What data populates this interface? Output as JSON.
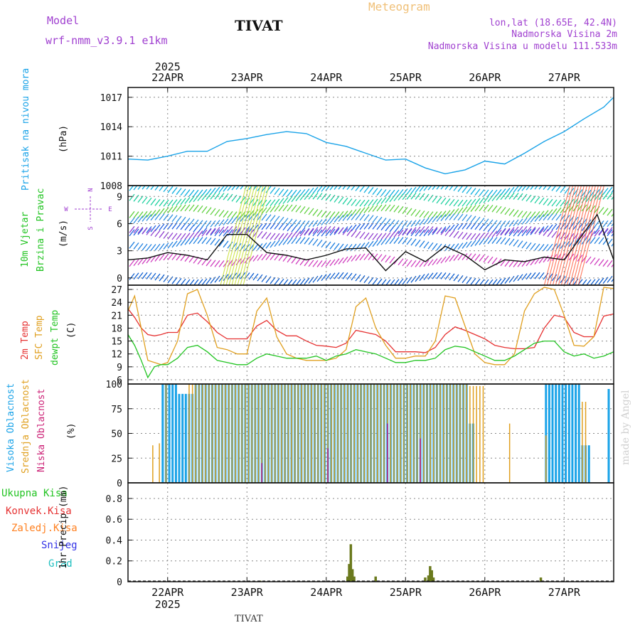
{
  "header": {
    "model_label": "Model",
    "model_name": "wrf-nmm_v3.9.1 e1km",
    "station": "TIVAT",
    "title": "Meteogram",
    "lonlat": "lon,lat (18.65E, 42.4N)",
    "elevation": "Nadmorska Visina 2m",
    "model_elevation": "Nadmorska Visina u modelu 111.533m",
    "year": "2025",
    "footer_station": "TIVAT",
    "watermark": "made by Angel"
  },
  "axis": {
    "date_labels": [
      "22APR",
      "23APR",
      "24APR",
      "25APR",
      "26APR",
      "27APR"
    ]
  },
  "panels": {
    "pressure": {
      "label": "Pritisak na nivou mora",
      "unit": "(hPa)",
      "ticks": [
        "1008",
        "1011",
        "1014",
        "1017"
      ]
    },
    "wind": {
      "label1": "10m Vjetar",
      "label2": "Brzina i Pravac",
      "unit": "(m/s)",
      "compass": [
        "N",
        "W",
        "E",
        "S"
      ],
      "ticks": [
        "0",
        "3",
        "6",
        "9"
      ]
    },
    "temp": {
      "label1": "2m Temp",
      "label2": "SFC Temp",
      "label3": "dewpt Temp",
      "unit": "(C)",
      "ticks": [
        "6",
        "9",
        "12",
        "15",
        "18",
        "21",
        "24",
        "27"
      ]
    },
    "cloud": {
      "label1": "Visoka Oblacnost",
      "label2": "Srednja Oblacnost",
      "label3": "Niska Oblacnost",
      "unit": "(%)",
      "ticks": [
        "0",
        "25",
        "50",
        "75",
        "100"
      ]
    },
    "precip": {
      "unit": "1hr Precip (mm)",
      "legend": [
        "Ukupna Kisa",
        "Konvek.Kisa",
        "Zaledj.Kisa",
        "Snijeg",
        "Grad"
      ],
      "ticks": [
        "0",
        "0.2",
        "0.4",
        "0.6",
        "0.8"
      ]
    }
  },
  "colors": {
    "pressure": "#1aa3e8",
    "temp2m": "#e63232",
    "sfc": "#e0a020",
    "dew": "#22c422",
    "high": "#1aa3e8",
    "mid": "#e0a020",
    "low": "#cc2277",
    "precip": "#6b7a1e",
    "total": "#22c422",
    "conv": "#e63232",
    "frz": "#ff8020",
    "snow": "#3232e6",
    "hail": "#20c0c0",
    "model": "#a040d0",
    "title": "#f0c078",
    "wind": "#a040d0"
  },
  "chart_data": [
    {
      "type": "line",
      "title": "Pritisak na nivou mora",
      "ylabel": "(hPa)",
      "ylim": [
        1008,
        1018
      ],
      "x": [
        0,
        6,
        12,
        18,
        24,
        30,
        36,
        42,
        48,
        54,
        60,
        66,
        72,
        78,
        84,
        90,
        96,
        102,
        108,
        114,
        120,
        126,
        132,
        138,
        144,
        147
      ],
      "series": [
        {
          "values": [
            1010.7,
            1010.6,
            1011.0,
            1011.5,
            1011.5,
            1012.5,
            1012.8,
            1013.2,
            1013.5,
            1013.3,
            1012.4,
            1012.0,
            1011.3,
            1010.6,
            1010.7,
            1009.8,
            1009.2,
            1009.6,
            1010.5,
            1010.2,
            1011.3,
            1012.5,
            1013.5,
            1014.8,
            1016.0,
            1017.0
          ]
        }
      ]
    },
    {
      "type": "line",
      "title": "10m Vjetar Brzina i Pravac",
      "ylabel": "(m/s)",
      "ylim": [
        -0.8,
        10.2
      ],
      "x": [
        0,
        6,
        12,
        18,
        24,
        30,
        36,
        42,
        48,
        54,
        60,
        66,
        72,
        78,
        84,
        90,
        96,
        102,
        108,
        114,
        120,
        126,
        132,
        138,
        142,
        147
      ],
      "series": [
        {
          "values": [
            2.0,
            2.2,
            2.8,
            2.5,
            2.0,
            4.8,
            4.8,
            2.8,
            2.5,
            2.0,
            2.5,
            3.2,
            3.3,
            0.8,
            2.9,
            1.8,
            3.5,
            2.5,
            0.9,
            2.0,
            1.8,
            2.3,
            2.0,
            5.0,
            7.0,
            2.0
          ]
        }
      ]
    },
    {
      "type": "line",
      "title": "2m Temp / SFC Temp / dewpt Temp",
      "ylabel": "(C)",
      "ylim": [
        5,
        28
      ],
      "x": [
        0,
        2,
        4,
        6,
        8,
        10,
        12,
        15,
        18,
        21,
        24,
        27,
        30,
        33,
        36,
        39,
        42,
        45,
        48,
        51,
        54,
        57,
        60,
        63,
        66,
        69,
        72,
        75,
        78,
        81,
        84,
        87,
        90,
        93,
        96,
        99,
        102,
        105,
        108,
        111,
        114,
        117,
        120,
        123,
        126,
        129,
        132,
        135,
        138,
        141,
        144,
        147
      ],
      "series": [
        {
          "name": "2m Temp",
          "values": [
            22.5,
            20.5,
            18,
            16.5,
            16.2,
            16.5,
            17,
            17,
            21,
            21.5,
            19.5,
            17,
            15.5,
            15.5,
            15.5,
            18.5,
            19.8,
            17.5,
            16.2,
            16.2,
            15,
            14,
            13.8,
            13.5,
            14.5,
            17.5,
            17,
            16.5,
            15,
            12.5,
            12.5,
            12.5,
            12.3,
            13.5,
            16.5,
            18.3,
            17.5,
            16.5,
            15.5,
            14,
            13.5,
            13.2,
            13.2,
            13.5,
            18,
            21,
            20.5,
            17,
            16,
            16,
            20.8,
            21.3
          ]
        },
        {
          "name": "SFC Temp",
          "values": [
            22,
            25.5,
            18,
            10.5,
            10,
            9.5,
            10,
            15,
            26,
            27,
            21,
            13.5,
            13,
            12,
            12,
            22,
            25,
            16,
            12,
            11,
            10.5,
            10.5,
            10.5,
            11,
            13,
            23,
            25,
            18,
            14,
            11,
            11,
            11.5,
            11.5,
            15,
            25.5,
            25,
            18.5,
            12,
            10,
            9.5,
            9.5,
            12,
            22,
            26,
            27.5,
            27,
            21,
            14,
            13.8,
            16,
            27.5,
            27.2
          ]
        },
        {
          "name": "dewpt Temp",
          "values": [
            16.5,
            14,
            10.5,
            6.5,
            9,
            9.5,
            9.5,
            11,
            13.5,
            14,
            12.5,
            10.5,
            10,
            9.5,
            9.5,
            11,
            12,
            11.5,
            11,
            11,
            11,
            11.5,
            10.5,
            11.5,
            12,
            13,
            12.5,
            12,
            11,
            10,
            10,
            10.5,
            10.5,
            11,
            13,
            13.8,
            13.5,
            12.5,
            11.5,
            10.5,
            10.5,
            11.5,
            13,
            14.5,
            15,
            15,
            12.5,
            11.5,
            12,
            11,
            11.5,
            12.5
          ]
        }
      ]
    },
    {
      "type": "bar",
      "title": "Visoka / Srednja / Niska Oblacnost",
      "ylabel": "(%)",
      "ylim": [
        0,
        100
      ],
      "series": [
        {
          "name": "Visoka Oblacnost",
          "segments": [
            [
              10,
              15,
              100
            ],
            [
              15,
              20,
              90
            ],
            [
              20,
              103,
              100
            ],
            [
              103,
              105,
              60
            ],
            [
              126,
              137,
              100
            ],
            [
              137,
              140,
              38
            ],
            [
              145,
              146,
              95
            ]
          ]
        },
        {
          "name": "Srednja Oblacnost",
          "segments": [
            [
              7,
              8,
              38
            ],
            [
              9,
              10,
              40
            ],
            [
              11,
              12,
              100
            ],
            [
              18,
              103,
              100
            ],
            [
              103,
              108,
              98
            ],
            [
              115,
              116,
              60
            ],
            [
              126,
              127,
              48
            ],
            [
              137,
              139,
              82
            ]
          ]
        },
        {
          "name": "Niska Oblacnost",
          "segments": [
            [
              40,
              41,
              20
            ],
            [
              60,
              61,
              35
            ],
            [
              78,
              79,
              60
            ],
            [
              88,
              89,
              45
            ]
          ]
        }
      ]
    },
    {
      "type": "bar",
      "title": "1hr Precip (mm)",
      "ylabel": "1hr Precip (mm)",
      "ylim": [
        0,
        0.95
      ],
      "x": [
        40,
        66.5,
        67,
        67.5,
        68,
        68.5,
        75,
        90,
        91,
        91.5,
        92,
        92.5,
        125
      ],
      "values": [
        0.01,
        0.05,
        0.17,
        0.36,
        0.12,
        0.05,
        0.05,
        0.04,
        0.06,
        0.15,
        0.11,
        0.04,
        0.04
      ]
    }
  ]
}
